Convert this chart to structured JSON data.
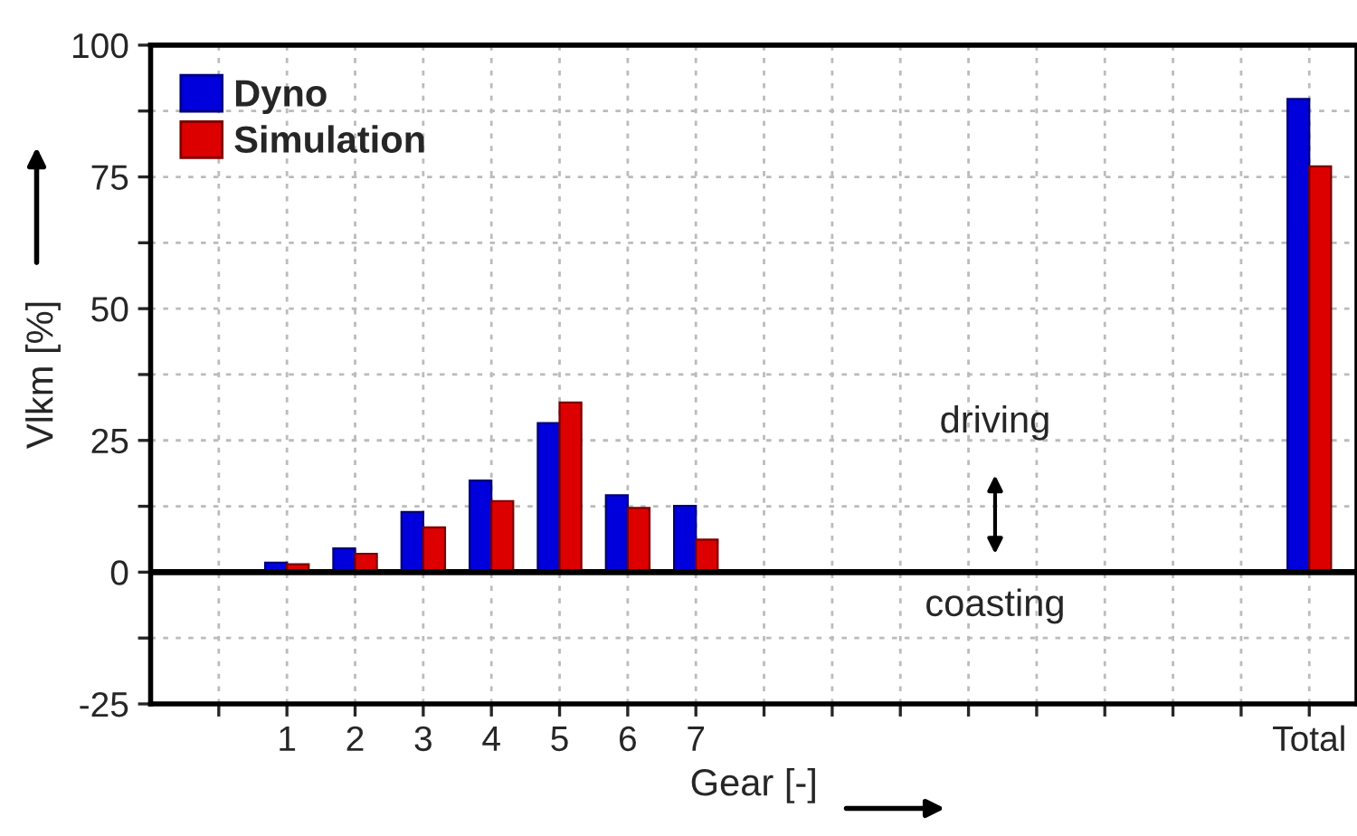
{
  "chart_data": {
    "type": "bar",
    "xlabel": "Gear [-]",
    "ylabel": "Vlkm [%]",
    "categories": [
      null,
      "1",
      "2",
      "3",
      "4",
      "5",
      "6",
      "7",
      null,
      null,
      null,
      null,
      null,
      null,
      null,
      null,
      "Total"
    ],
    "series": [
      {
        "name": "Dyno",
        "color": "#0000dd",
        "values": [
          null,
          1.8,
          4.5,
          11.4,
          17.4,
          28.3,
          14.6,
          12.6,
          null,
          null,
          null,
          null,
          null,
          null,
          null,
          null,
          89.8
        ]
      },
      {
        "name": "Simulation",
        "color": "#dd0000",
        "values": [
          null,
          1.5,
          3.5,
          8.5,
          13.5,
          32.2,
          12.2,
          6.2,
          null,
          null,
          null,
          null,
          null,
          null,
          null,
          null,
          77
        ]
      }
    ],
    "ylim": [
      -25,
      100
    ],
    "yticks": [
      -25,
      {
        "value": -12.5,
        "label": null
      },
      0,
      {
        "value": 12.5,
        "label": null
      },
      25,
      {
        "value": 37.5,
        "label": null
      },
      50,
      {
        "value": 62.5,
        "label": null
      },
      75,
      {
        "value": 87.5,
        "label": null
      },
      100
    ],
    "ref_lines": [
      {
        "axis": "y",
        "value": 0,
        "color": "#000000"
      }
    ],
    "annotations": [
      "driving",
      "coasting"
    ],
    "grid": true,
    "legend": "top left"
  }
}
